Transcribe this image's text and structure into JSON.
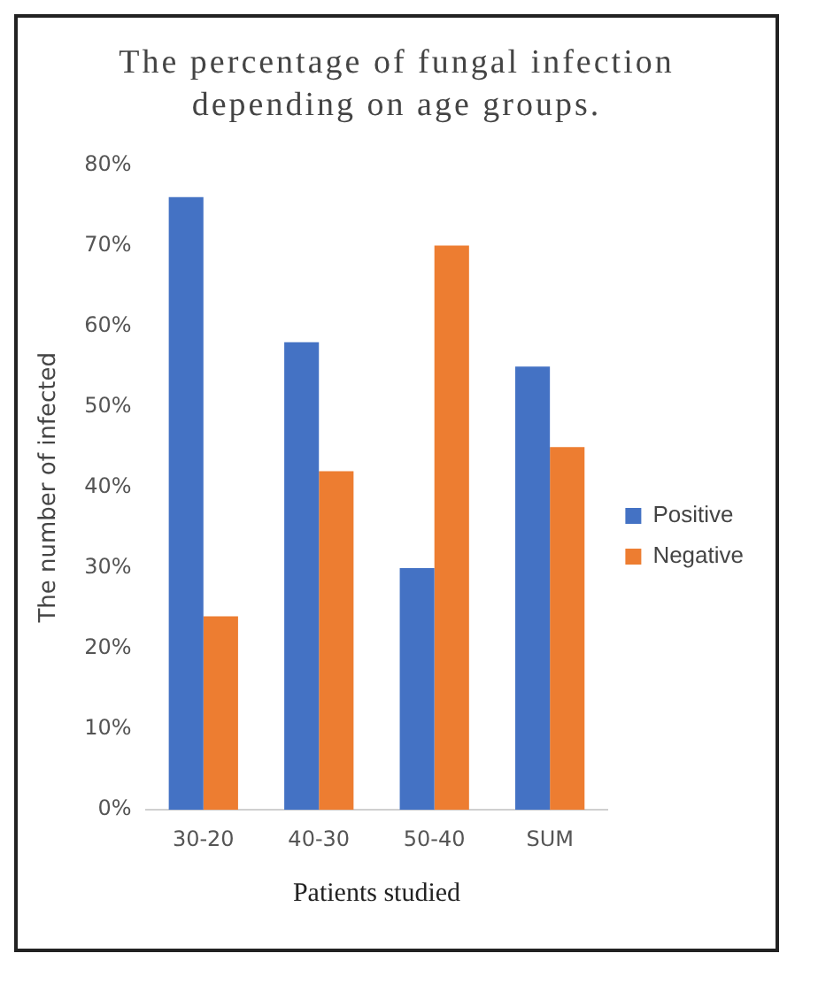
{
  "chart_data": {
    "type": "bar",
    "title": "The percentage of fungal infection depending on age groups.",
    "xlabel": "Patients studied",
    "ylabel": "The number of infected",
    "categories": [
      "30-20",
      "40-30",
      "50-40",
      "SUM"
    ],
    "series": [
      {
        "name": "Positive",
        "color": "#4472c4",
        "values": [
          76,
          58,
          30,
          55
        ]
      },
      {
        "name": "Negative",
        "color": "#ed7d31",
        "values": [
          24,
          42,
          70,
          45
        ]
      }
    ],
    "ylim": [
      0,
      80
    ],
    "yticks": [
      {
        "value": 0,
        "label": "0%"
      },
      {
        "value": 10,
        "label": "10%"
      },
      {
        "value": 20,
        "label": "20%"
      },
      {
        "value": 30,
        "label": "30%"
      },
      {
        "value": 40,
        "label": "40%"
      },
      {
        "value": 50,
        "label": "50%"
      },
      {
        "value": 60,
        "label": "60%"
      },
      {
        "value": 70,
        "label": "70%"
      },
      {
        "value": 80,
        "label": "80%"
      }
    ],
    "grid": false,
    "legend": "right"
  }
}
